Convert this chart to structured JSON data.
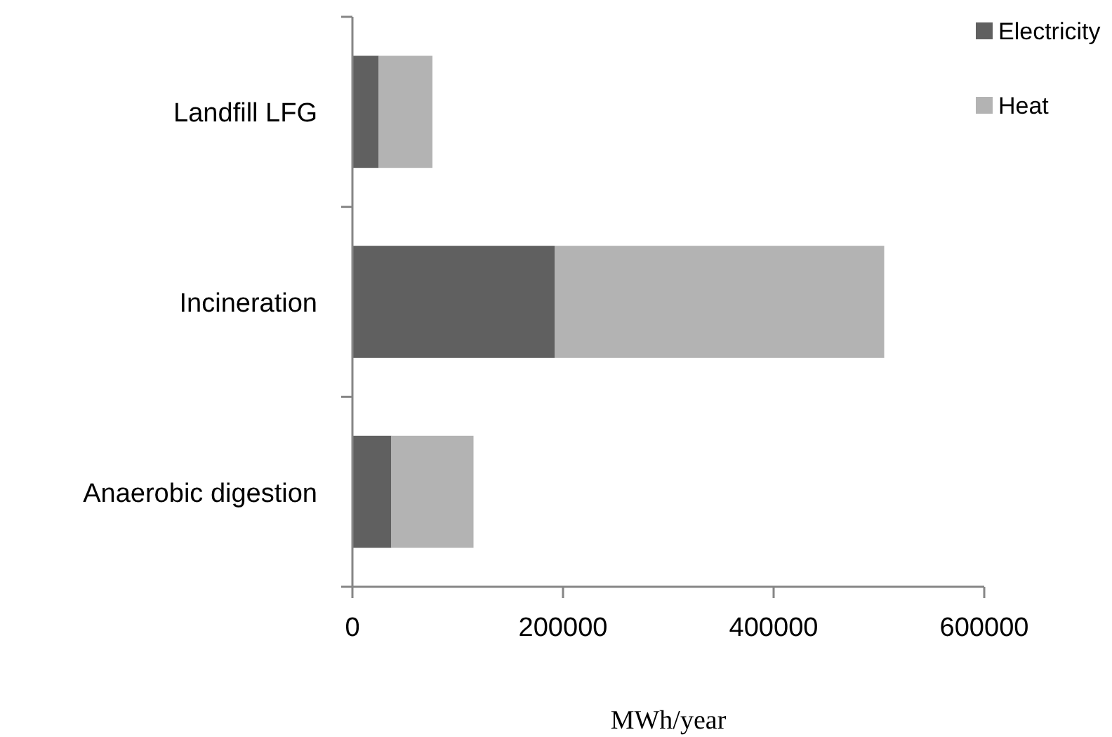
{
  "chart_data": {
    "type": "bar",
    "orientation": "horizontal",
    "stacked": true,
    "categories": [
      "Landfill LFG",
      "Incineration",
      "Anaerobic digestion"
    ],
    "series": [
      {
        "name": "Electricity",
        "color": "#606060",
        "values": [
          25000,
          192000,
          37000
        ]
      },
      {
        "name": "Heat",
        "color": "#b3b3b3",
        "values": [
          51000,
          313000,
          78000
        ]
      }
    ],
    "xlim": [
      0,
      600000
    ],
    "xticks": [
      0,
      200000,
      400000,
      600000
    ],
    "xlabel": "MWh/year",
    "grid": false,
    "legend": "top right"
  }
}
